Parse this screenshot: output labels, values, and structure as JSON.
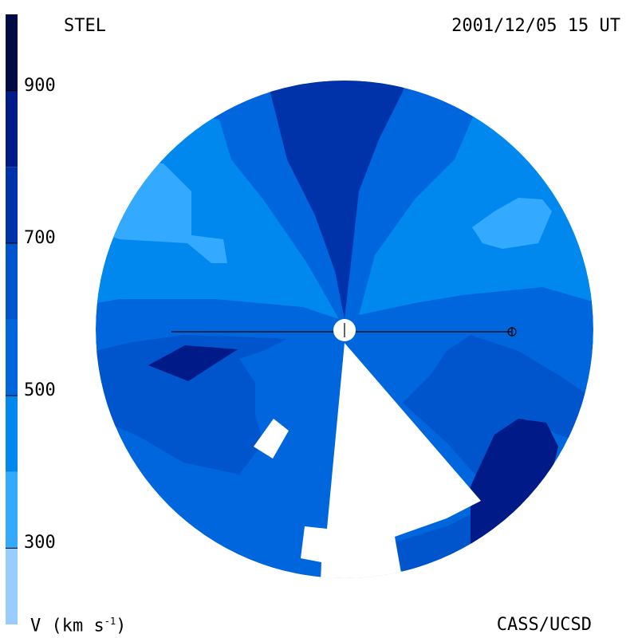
{
  "header": {
    "instrument": "STEL",
    "timestamp": "2001/12/05 15 UT"
  },
  "footer": {
    "unit_label": "V (km s",
    "unit_exponent": "-1",
    "unit_close": ")",
    "credit": "CASS/UCSD"
  },
  "colorbar": {
    "min": 200,
    "max": 1000,
    "ticks": [
      {
        "value": 900,
        "label": "900"
      },
      {
        "value": 700,
        "label": "700"
      },
      {
        "value": 500,
        "label": "500"
      },
      {
        "value": 300,
        "label": "300"
      }
    ],
    "bands": [
      {
        "from": 200,
        "to": 300,
        "color": "#99ccff"
      },
      {
        "from": 300,
        "to": 400,
        "color": "#33aaff"
      },
      {
        "from": 400,
        "to": 500,
        "color": "#0088ee"
      },
      {
        "from": 500,
        "to": 600,
        "color": "#0066dd"
      },
      {
        "from": 600,
        "to": 700,
        "color": "#0055cc"
      },
      {
        "from": 700,
        "to": 800,
        "color": "#0033aa"
      },
      {
        "from": 800,
        "to": 900,
        "color": "#001a88"
      },
      {
        "from": 900,
        "to": 1000,
        "color": "#000a44"
      }
    ]
  },
  "colors": {
    "v300": "#33aaff",
    "v400": "#0088ee",
    "v500": "#0066dd",
    "v600": "#0055cc",
    "v700": "#0033aa",
    "v800": "#001a88",
    "v900": "#000a44"
  }
}
